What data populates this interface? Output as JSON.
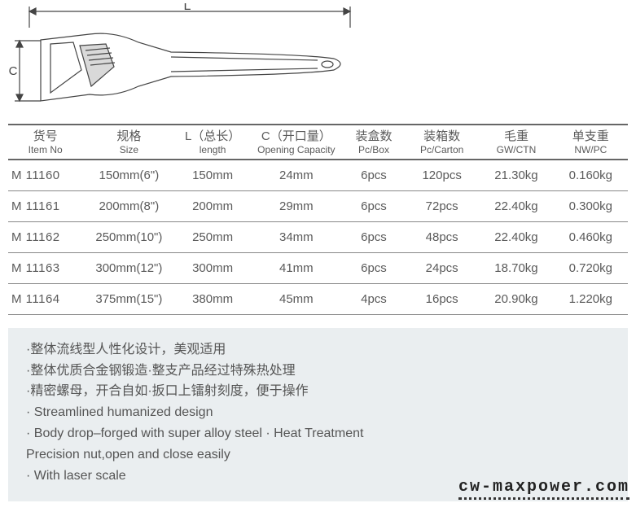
{
  "diagram": {
    "total_label": "L",
    "cap_label": "C",
    "line_color": "#444444"
  },
  "headers": [
    {
      "cn": "货号",
      "en": "Item No"
    },
    {
      "cn": "规格",
      "en": "Size"
    },
    {
      "cn": "L（总长）",
      "en": "length"
    },
    {
      "cn": "C（开口量）",
      "en": "Opening Capacity"
    },
    {
      "cn": "装盒数",
      "en": "Pc/Box"
    },
    {
      "cn": "装箱数",
      "en": "Pc/Carton"
    },
    {
      "cn": "毛重",
      "en": "GW/CTN"
    },
    {
      "cn": "单支重",
      "en": "NW/PC"
    }
  ],
  "rows": [
    {
      "no": "M 11160",
      "size": "150mm(6\")",
      "len": "150mm",
      "cap": "24mm",
      "box": "6pcs",
      "ctn": "120pcs",
      "gw": "21.30kg",
      "nw": "0.160kg"
    },
    {
      "no": "M 11161",
      "size": "200mm(8\")",
      "len": "200mm",
      "cap": "29mm",
      "box": "6pcs",
      "ctn": "72pcs",
      "gw": "22.40kg",
      "nw": "0.300kg"
    },
    {
      "no": "M 11162",
      "size": "250mm(10\")",
      "len": "250mm",
      "cap": "34mm",
      "box": "6pcs",
      "ctn": "48pcs",
      "gw": "22.40kg",
      "nw": "0.460kg"
    },
    {
      "no": "M 11163",
      "size": "300mm(12\")",
      "len": "300mm",
      "cap": "41mm",
      "box": "6pcs",
      "ctn": "24pcs",
      "gw": "18.70kg",
      "nw": "0.720kg"
    },
    {
      "no": "M  11164",
      "size": "375mm(15\")",
      "len": "380mm",
      "cap": "45mm",
      "box": "4pcs",
      "ctn": "16pcs",
      "gw": "20.90kg",
      "nw": "1.220kg"
    }
  ],
  "features": [
    "·整体流线型人性化设计，美观适用",
    "·整体优质合金钢锻造·整支产品经过特殊热处理",
    "·精密螺母，开合自如·扳口上镭射刻度，便于操作",
    "· Streamlined humanized design",
    "· Body drop–forged with super alloy steel · Heat Treatment",
    "  Precision nut,open and close easily",
    "· With laser scale"
  ],
  "colors": {
    "text": "#5a5a5a",
    "border_strong": "#666666",
    "border_thin": "#888888",
    "feature_bg": "#eaeef0"
  },
  "watermark": "cw-maxpower.com"
}
